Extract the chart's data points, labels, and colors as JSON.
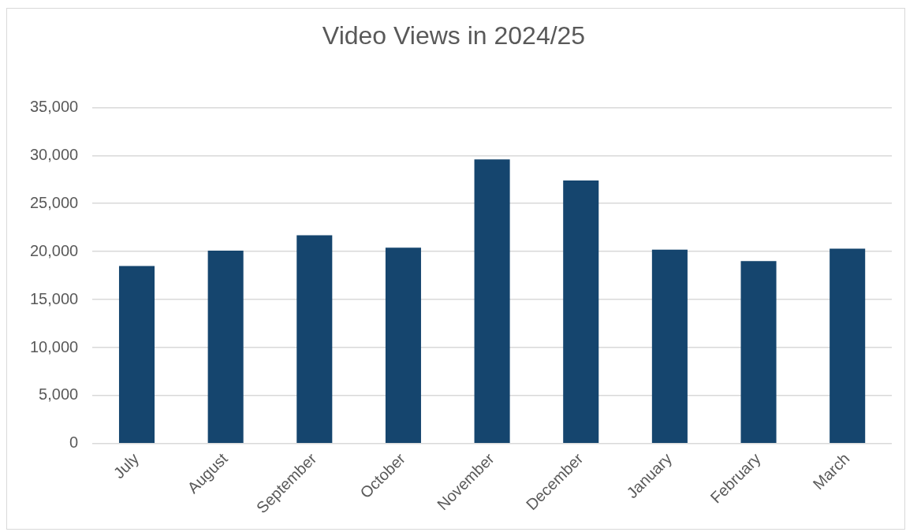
{
  "chart_data": {
    "type": "bar",
    "title": "Video Views in 2024/25",
    "categories": [
      "July",
      "August",
      "September",
      "October",
      "November",
      "December",
      "January",
      "February",
      "March"
    ],
    "values": [
      18500,
      20100,
      21700,
      20400,
      29600,
      27400,
      20200,
      19000,
      20300
    ],
    "color": "#15456e",
    "ylim": [
      0,
      35000
    ],
    "yticks": [
      {
        "value": 0,
        "label": "0"
      },
      {
        "value": 5000,
        "label": "5,000"
      },
      {
        "value": 10000,
        "label": "10,000"
      },
      {
        "value": 15000,
        "label": "15,000"
      },
      {
        "value": 20000,
        "label": "20,000"
      },
      {
        "value": 25000,
        "label": "25,000"
      },
      {
        "value": 30000,
        "label": "30,000"
      },
      {
        "value": 35000,
        "label": "35,000"
      }
    ],
    "grid": "y",
    "legend": false
  }
}
